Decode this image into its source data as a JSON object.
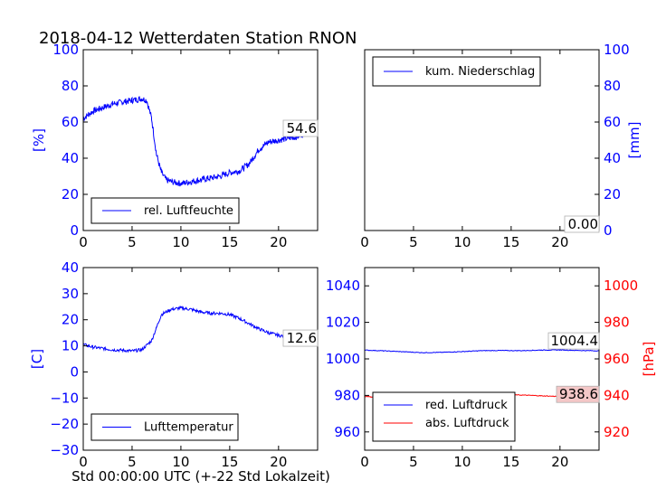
{
  "title": "2018-04-12 Wetterdaten Station RNON",
  "xlabel": "Std 00:00:00 UTC (+-22 Std Lokalzeit)",
  "colors": {
    "blue": "#0000ff",
    "red": "#ff0000",
    "black": "#000000"
  },
  "chart_data": [
    {
      "type": "line",
      "panel": "top-left",
      "ylabel": "[%]",
      "xlim": [
        0,
        24
      ],
      "ylim": [
        0,
        100
      ],
      "xticks": [
        0,
        5,
        10,
        15,
        20
      ],
      "yticks": [
        0,
        20,
        40,
        60,
        80,
        100
      ],
      "legend_placement": "lower-left",
      "series": [
        {
          "name": "rel. Luftfeuchte",
          "color": "#0000ff",
          "x": [
            0,
            1,
            2,
            3,
            4,
            5,
            6,
            6.5,
            7,
            7.5,
            8,
            8.5,
            9,
            10,
            11,
            12,
            13,
            14,
            15,
            16,
            17,
            18,
            19,
            20,
            21,
            22,
            23,
            24
          ],
          "y": [
            62,
            66,
            68,
            70,
            71,
            72,
            73,
            72,
            62,
            42,
            32,
            28,
            27,
            26,
            27,
            28,
            29,
            30,
            32,
            33,
            37,
            45,
            49,
            50,
            51,
            52,
            55,
            54.6
          ]
        }
      ],
      "last_value_label": "54.6"
    },
    {
      "type": "line",
      "panel": "top-right",
      "ylabel": "[mm]",
      "xlim": [
        0,
        24
      ],
      "ylim": [
        0,
        100
      ],
      "xticks": [
        0,
        5,
        10,
        15,
        20
      ],
      "yticks": [
        0,
        20,
        40,
        60,
        80,
        100
      ],
      "legend_placement": "upper-left",
      "series": [
        {
          "name": "kum. Niederschlag",
          "color": "#0000ff",
          "x": [
            0,
            24
          ],
          "y": [
            0,
            0
          ]
        }
      ],
      "last_value_label": "0.00"
    },
    {
      "type": "line",
      "panel": "bottom-left",
      "ylabel": "[C]",
      "xlim": [
        0,
        24
      ],
      "ylim": [
        -30,
        40
      ],
      "xticks": [
        0,
        5,
        10,
        15,
        20
      ],
      "yticks": [
        -30,
        -20,
        -10,
        0,
        10,
        20,
        30,
        40
      ],
      "legend_placement": "lower-left",
      "series": [
        {
          "name": "Lufttemperatur",
          "color": "#0000ff",
          "x": [
            0,
            1,
            2,
            3,
            4,
            5,
            6,
            7,
            7.5,
            8,
            9,
            10,
            11,
            12,
            13,
            14,
            15,
            16,
            17,
            18,
            19,
            20,
            21,
            22,
            23,
            24
          ],
          "y": [
            10.5,
            9.5,
            9,
            8.5,
            8.3,
            8,
            8.5,
            12,
            17,
            22,
            24,
            24.5,
            24,
            23,
            22.5,
            22.5,
            22,
            20.5,
            18.5,
            16.5,
            15,
            14,
            13.5,
            13,
            12.8,
            12.6
          ]
        }
      ],
      "last_value_label": "12.6"
    },
    {
      "type": "line",
      "panel": "bottom-right",
      "xlim": [
        0,
        24
      ],
      "ylim_left": [
        950,
        1050
      ],
      "ylim_right": [
        910,
        1010
      ],
      "yticks_left": [
        960,
        980,
        1000,
        1020,
        1040
      ],
      "yticks_right": [
        920,
        940,
        960,
        980,
        1000
      ],
      "ylabel_right": "[hPa]",
      "xticks": [
        0,
        5,
        10,
        15,
        20
      ],
      "legend_placement": "lower-left",
      "series": [
        {
          "name": "red. Luftdruck",
          "color": "#0000ff",
          "axis": "left",
          "x": [
            0,
            2,
            4,
            6,
            8,
            10,
            12,
            14,
            16,
            18,
            20,
            22,
            24
          ],
          "y": [
            1004.8,
            1004.4,
            1003.9,
            1003.4,
            1003.6,
            1004,
            1004.5,
            1004.6,
            1004.5,
            1004.8,
            1004.9,
            1004.6,
            1004.4
          ]
        },
        {
          "name": "abs. Luftdruck",
          "color": "#ff0000",
          "axis": "right",
          "x": [
            0,
            2,
            4,
            6,
            7,
            8,
            10,
            12,
            14,
            16,
            18,
            20,
            22,
            24
          ],
          "y": [
            939.5,
            938.5,
            937.5,
            936.8,
            937.3,
            939.5,
            940.5,
            940.8,
            940.6,
            940.2,
            939.8,
            939.4,
            938.9,
            938.6
          ]
        }
      ],
      "last_value_labels": [
        "1004.4",
        "938.6"
      ]
    }
  ]
}
